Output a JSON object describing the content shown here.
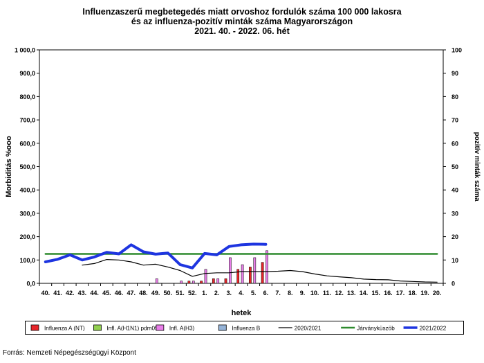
{
  "page": {
    "title_line1": "Influenzaszerű megbetegedés miatt orvoshoz fordulók száma 100 000 lakosra",
    "title_line2": "és az influenza-pozitív minták száma Magyarországon",
    "title_line3": "2021. 40. - 2022. 06. hét",
    "source": "Forrás: Nemzeti Népegészségügyi Központ"
  },
  "chart_data": {
    "type": "bar",
    "xlabel": "hetek",
    "ylabel": "Morbiditás %ooo",
    "y2label": "pozitív minták száma",
    "ylim": [
      0,
      1000
    ],
    "y2lim": [
      0,
      100
    ],
    "yticks": [
      "0,0",
      "100,0",
      "200,0",
      "300,0",
      "400,0",
      "500,0",
      "600,0",
      "700,0",
      "800,0",
      "900,0",
      "1 000,0"
    ],
    "y2ticks": [
      "0",
      "10",
      "20",
      "30",
      "40",
      "50",
      "60",
      "70",
      "80",
      "90",
      "100"
    ],
    "grid": false,
    "legend_position": "bottom",
    "categories": [
      "40.",
      "41.",
      "42.",
      "43.",
      "44.",
      "45.",
      "46.",
      "47.",
      "48.",
      "49.",
      "50.",
      "51.",
      "52.",
      "1.",
      "2.",
      "3.",
      "4.",
      "5.",
      "6.",
      "7.",
      "8.",
      "9.",
      "10.",
      "11.",
      "12.",
      "13.",
      "14.",
      "15.",
      "16.",
      "17.",
      "18.",
      "19.",
      "20."
    ],
    "bar_series": [
      {
        "name": "Influenza A (NT)",
        "color": "#e8252a",
        "axis": "right",
        "values": [
          0,
          0,
          0,
          0,
          0,
          0,
          0,
          0,
          0,
          0,
          0,
          0,
          1,
          1,
          2,
          2,
          6,
          7,
          9,
          null,
          null,
          null,
          null,
          null,
          null,
          null,
          null,
          null,
          null,
          null,
          null,
          null,
          null
        ]
      },
      {
        "name": "Infl. A(H1N1) pdm09",
        "color": "#92d050",
        "axis": "right",
        "values": [
          0,
          0,
          0,
          0,
          0,
          0,
          0,
          0,
          0,
          0,
          0,
          0,
          0,
          0,
          0,
          0,
          0,
          0,
          0,
          null,
          null,
          null,
          null,
          null,
          null,
          null,
          null,
          null,
          null,
          null,
          null,
          null,
          null
        ]
      },
      {
        "name": "Infl. A(H3)",
        "color": "#e87ee8",
        "axis": "right",
        "values": [
          0,
          0,
          0,
          0,
          0,
          0,
          0,
          0,
          0,
          2,
          0,
          1,
          1,
          6,
          2,
          11,
          8,
          11,
          14,
          null,
          null,
          null,
          null,
          null,
          null,
          null,
          null,
          null,
          null,
          null,
          null,
          null,
          null
        ]
      },
      {
        "name": "Influenza B",
        "color": "#95b3d7",
        "axis": "right",
        "values": [
          0,
          0,
          0,
          0,
          0,
          0,
          0,
          0,
          0,
          0,
          0,
          0,
          0,
          0,
          0,
          0,
          0,
          0,
          0,
          null,
          null,
          null,
          null,
          null,
          null,
          null,
          null,
          null,
          null,
          null,
          null,
          null,
          null
        ]
      }
    ],
    "line_series": [
      {
        "name": "2020/2021",
        "color": "#000000",
        "width": 1.2,
        "values": [
          null,
          null,
          null,
          78,
          85,
          102,
          100,
          92,
          78,
          82,
          70,
          55,
          30,
          42,
          45,
          45,
          50,
          50,
          50,
          52,
          55,
          50,
          40,
          32,
          28,
          24,
          18,
          16,
          15,
          10,
          8,
          6,
          5
        ]
      },
      {
        "name": "Járványküszöb",
        "color": "#2e8b2e",
        "width": 2.5,
        "values": [
          126,
          126,
          126,
          126,
          126,
          126,
          126,
          126,
          126,
          126,
          126,
          126,
          126,
          126,
          126,
          126,
          126,
          126,
          126,
          126,
          126,
          126,
          126,
          126,
          126,
          126,
          126,
          126,
          126,
          126,
          126,
          126,
          126
        ]
      },
      {
        "name": "2021/2022",
        "color": "#1e35e0",
        "width": 4,
        "values": [
          92,
          103,
          122,
          100,
          113,
          133,
          126,
          165,
          135,
          125,
          130,
          80,
          66,
          128,
          122,
          158,
          165,
          168,
          167,
          null,
          null,
          null,
          null,
          null,
          null,
          null,
          null,
          null,
          null,
          null,
          null,
          null,
          null
        ]
      }
    ]
  }
}
